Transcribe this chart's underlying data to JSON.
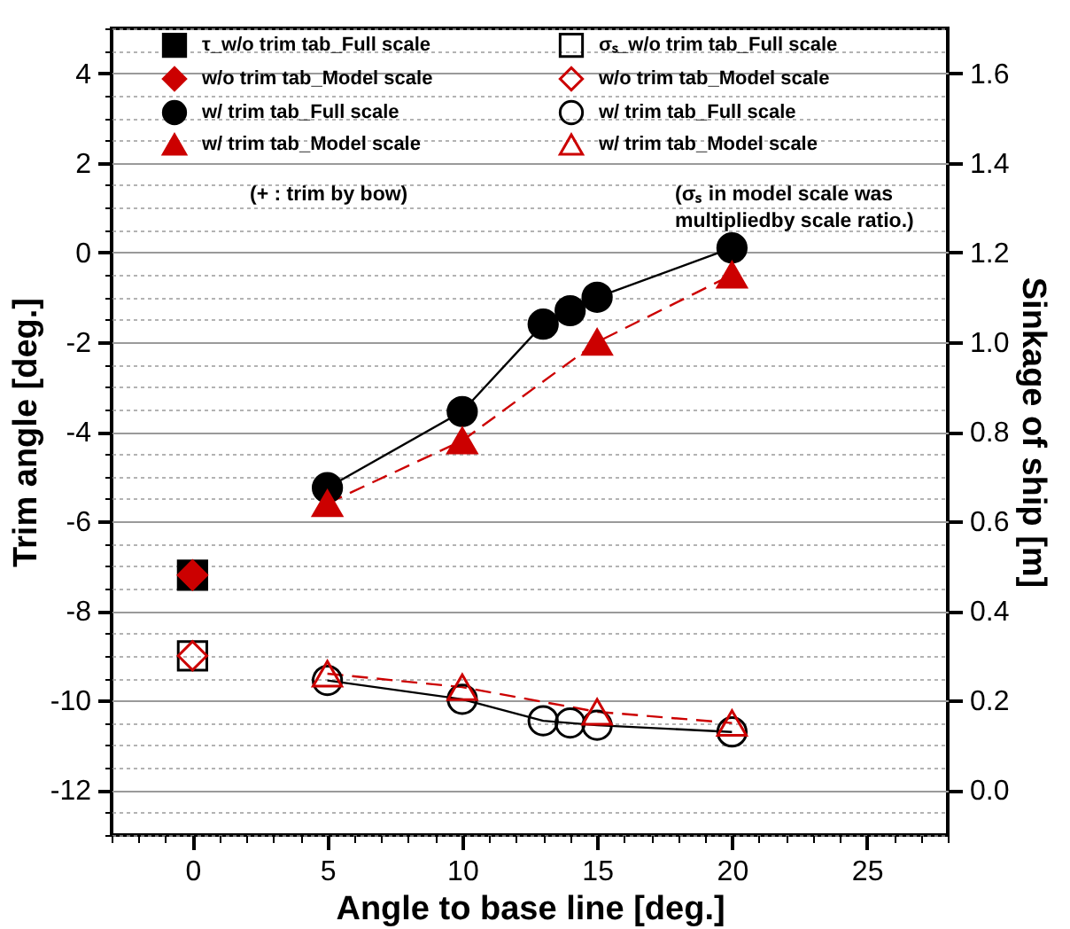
{
  "chart_data": {
    "type": "line",
    "xlabel": "Angle to base line [deg.]",
    "ylabel": "Trim angle [deg.]",
    "y2label": "Sinkage of ship [m]",
    "xlim": [
      -3,
      28
    ],
    "xticks": [
      {
        "value": -3,
        "label": null
      },
      {
        "value": -2,
        "label": null
      },
      {
        "value": -1,
        "label": null
      },
      0,
      {
        "value": 1,
        "label": null
      },
      {
        "value": 2,
        "label": null
      },
      {
        "value": 3,
        "label": null
      },
      {
        "value": 4,
        "label": null
      },
      5,
      {
        "value": 6,
        "label": null
      },
      {
        "value": 7,
        "label": null
      },
      {
        "value": 8,
        "label": null
      },
      {
        "value": 9,
        "label": null
      },
      10,
      {
        "value": 11,
        "label": null
      },
      {
        "value": 12,
        "label": null
      },
      {
        "value": 13,
        "label": null
      },
      {
        "value": 14,
        "label": null
      },
      15,
      {
        "value": 16,
        "label": null
      },
      {
        "value": 17,
        "label": null
      },
      {
        "value": 18,
        "label": null
      },
      {
        "value": 19,
        "label": null
      },
      20,
      {
        "value": 21,
        "label": null
      },
      {
        "value": 22,
        "label": null
      },
      {
        "value": 23,
        "label": null
      },
      {
        "value": 24,
        "label": null
      },
      25,
      {
        "value": 26,
        "label": null
      },
      {
        "value": 27,
        "label": null
      },
      {
        "value": 28,
        "label": null
      }
    ],
    "ylim": [
      -13,
      5
    ],
    "yticks": [
      {
        "value": -13,
        "label": null
      },
      {
        "value": -12.5,
        "label": null
      },
      -12,
      {
        "value": -11.5,
        "label": null
      },
      {
        "value": -11,
        "label": null
      },
      {
        "value": -10.5,
        "label": null
      },
      -10,
      {
        "value": -9.5,
        "label": null
      },
      {
        "value": -9,
        "label": null
      },
      {
        "value": -8.5,
        "label": null
      },
      -8,
      {
        "value": -7.5,
        "label": null
      },
      {
        "value": -7,
        "label": null
      },
      {
        "value": -6.5,
        "label": null
      },
      -6,
      {
        "value": -5.5,
        "label": null
      },
      {
        "value": -5,
        "label": null
      },
      {
        "value": -4.5,
        "label": null
      },
      -4,
      {
        "value": -3.5,
        "label": null
      },
      {
        "value": -3,
        "label": null
      },
      {
        "value": -2.5,
        "label": null
      },
      -2,
      {
        "value": -1.5,
        "label": null
      },
      {
        "value": -1,
        "label": null
      },
      {
        "value": -0.5,
        "label": null
      },
      0,
      {
        "value": 0.5,
        "label": null
      },
      {
        "value": 1,
        "label": null
      },
      {
        "value": 1.5,
        "label": null
      },
      2,
      {
        "value": 2.5,
        "label": null
      },
      {
        "value": 3,
        "label": null
      },
      {
        "value": 3.5,
        "label": null
      },
      4,
      {
        "value": 4.5,
        "label": null
      },
      {
        "value": 5,
        "label": null
      }
    ],
    "y2lim": [
      -0.1,
      1.7
    ],
    "y2ticks": [
      {
        "value": 0,
        "label": "0.0"
      },
      0.2,
      0.4,
      0.6,
      0.8,
      {
        "value": 1,
        "label": "1.0"
      },
      1.2,
      1.4,
      1.6
    ],
    "grid": "y",
    "legend": "top",
    "annotations": [
      "(+ : trim by bow)",
      "(σₛ in model scale was multipliedby scale ratio.)"
    ],
    "series": [
      {
        "name": "τ_w/o trim tab_Full scale",
        "type": "scatter",
        "color": "#000000",
        "marker": "square",
        "x": [
          0
        ],
        "values": [
          -7.2
        ]
      },
      {
        "name": "w/o trim tab_Model scale",
        "type": "scatter",
        "color": "#cc0000",
        "marker": "diamond",
        "x": [
          0
        ],
        "values": [
          -7.2
        ]
      },
      {
        "name": "w/ trim tab_Full scale",
        "type": "line",
        "color": "#000000",
        "marker": "circle",
        "line_style": "solid",
        "x": [
          5,
          10,
          13,
          14,
          15,
          20
        ],
        "values": [
          -5.25,
          -3.55,
          -1.6,
          -1.3,
          -1.0,
          0.1
        ]
      },
      {
        "name": "w/ trim tab_Model scale",
        "type": "line",
        "color": "#cc0000",
        "marker": "triangle",
        "line_style": "dashed",
        "x": [
          5,
          10,
          15,
          20
        ],
        "values": [
          -5.6,
          -4.2,
          -2.0,
          -0.5
        ]
      },
      {
        "name": "σₛ_w/o trim tab_Full scale",
        "type": "scatter",
        "axis": "y2",
        "color": "#000000",
        "marker": "square",
        "x": [
          0
        ],
        "values": [
          0.3
        ]
      },
      {
        "name": "w/o trim tab_Model scale",
        "type": "scatter",
        "axis": "y2",
        "color": "#cc0000",
        "marker": "diamond",
        "x": [
          0
        ],
        "values": [
          0.3
        ]
      },
      {
        "name": "w/ trim tab_Full scale",
        "type": "line",
        "axis": "y2",
        "color": "#000000",
        "marker": "circle",
        "line_style": "solid",
        "x": [
          5,
          10,
          13,
          14,
          15,
          20
        ],
        "values": [
          0.245,
          0.203,
          0.155,
          0.15,
          0.145,
          0.13
        ]
      },
      {
        "name": "w/ trim tab_Model scale",
        "type": "line",
        "axis": "y2",
        "color": "#cc0000",
        "marker": "triangle",
        "line_style": "dashed",
        "x": [
          5,
          10,
          15,
          20
        ],
        "values": [
          0.26,
          0.23,
          0.175,
          0.15
        ]
      }
    ]
  }
}
